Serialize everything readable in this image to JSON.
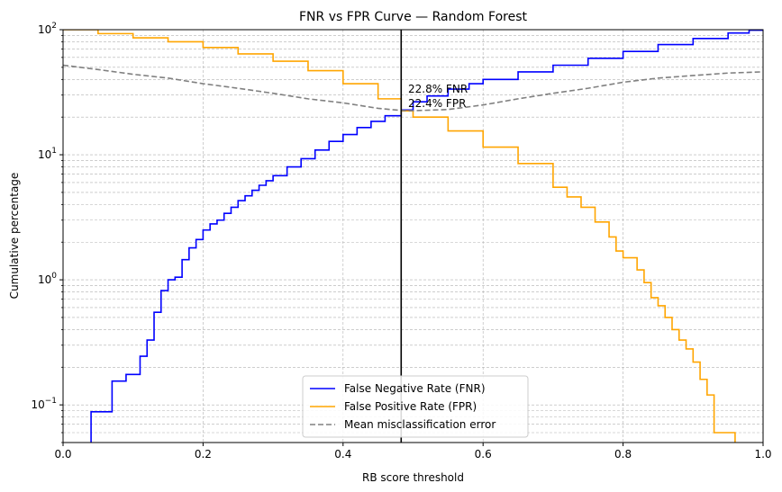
{
  "chart_data": {
    "type": "line",
    "title": "FNR vs FPR Curve — Random Forest",
    "xlabel": "RB score threshold",
    "ylabel": "Cumulative percentage",
    "xlim": [
      0.0,
      1.0
    ],
    "ylim": [
      0.05,
      100
    ],
    "yscale": "log",
    "grid": "both (major and minor, dashed)",
    "legend_position": "lower center",
    "x_ticks": [
      {
        "value": 0.0,
        "label": "0.0"
      },
      {
        "value": 0.2,
        "label": "0.2"
      },
      {
        "value": 0.4,
        "label": "0.4"
      },
      {
        "value": 0.6,
        "label": "0.6"
      },
      {
        "value": 0.8,
        "label": "0.8"
      },
      {
        "value": 1.0,
        "label": "1.0"
      }
    ],
    "y_ticks": [
      {
        "value": 0.1,
        "base": "10",
        "exp": "−1"
      },
      {
        "value": 1,
        "base": "10",
        "exp": "0"
      },
      {
        "value": 10,
        "base": "10",
        "exp": "1"
      },
      {
        "value": 100,
        "base": "10",
        "exp": "2"
      }
    ],
    "series": [
      {
        "name": "False Negative Rate (FNR)",
        "color": "#0000ff",
        "style": "solid-step",
        "points": [
          [
            0.04,
            0.03
          ],
          [
            0.04,
            0.088
          ],
          [
            0.07,
            0.088
          ],
          [
            0.07,
            0.155
          ],
          [
            0.09,
            0.155
          ],
          [
            0.09,
            0.175
          ],
          [
            0.11,
            0.175
          ],
          [
            0.11,
            0.245
          ],
          [
            0.12,
            0.245
          ],
          [
            0.12,
            0.33
          ],
          [
            0.13,
            0.33
          ],
          [
            0.13,
            0.55
          ],
          [
            0.14,
            0.58
          ],
          [
            0.14,
            0.82
          ],
          [
            0.15,
            0.85
          ],
          [
            0.15,
            1.0
          ],
          [
            0.16,
            1.05
          ],
          [
            0.17,
            1.45
          ],
          [
            0.18,
            1.8
          ],
          [
            0.19,
            2.1
          ],
          [
            0.2,
            2.5
          ],
          [
            0.21,
            2.8
          ],
          [
            0.22,
            3.0
          ],
          [
            0.23,
            3.4
          ],
          [
            0.24,
            3.8
          ],
          [
            0.25,
            4.3
          ],
          [
            0.26,
            4.7
          ],
          [
            0.27,
            5.2
          ],
          [
            0.28,
            5.7
          ],
          [
            0.29,
            6.2
          ],
          [
            0.3,
            6.8
          ],
          [
            0.32,
            8.0
          ],
          [
            0.34,
            9.3
          ],
          [
            0.36,
            10.9
          ],
          [
            0.38,
            12.8
          ],
          [
            0.4,
            14.5
          ],
          [
            0.42,
            16.5
          ],
          [
            0.44,
            18.5
          ],
          [
            0.46,
            20.5
          ],
          [
            0.483,
            22.8
          ],
          [
            0.5,
            26.5
          ],
          [
            0.52,
            29.5
          ],
          [
            0.55,
            33.5
          ],
          [
            0.58,
            37.0
          ],
          [
            0.6,
            40.0
          ],
          [
            0.65,
            46.0
          ],
          [
            0.7,
            52.0
          ],
          [
            0.75,
            59.0
          ],
          [
            0.8,
            67.0
          ],
          [
            0.85,
            76.0
          ],
          [
            0.9,
            85.0
          ],
          [
            0.95,
            94.0
          ],
          [
            0.98,
            99.0
          ],
          [
            1.0,
            100.0
          ]
        ]
      },
      {
        "name": "False Positive Rate (FPR)",
        "color": "#ffa500",
        "style": "solid-step",
        "points": [
          [
            0.0,
            100.0
          ],
          [
            0.05,
            93.0
          ],
          [
            0.1,
            86.0
          ],
          [
            0.15,
            80.0
          ],
          [
            0.2,
            72.0
          ],
          [
            0.25,
            64.0
          ],
          [
            0.3,
            56.0
          ],
          [
            0.35,
            47.0
          ],
          [
            0.4,
            37.0
          ],
          [
            0.45,
            28.0
          ],
          [
            0.483,
            22.4
          ],
          [
            0.5,
            20.0
          ],
          [
            0.55,
            15.5
          ],
          [
            0.6,
            11.5
          ],
          [
            0.65,
            8.5
          ],
          [
            0.7,
            5.5
          ],
          [
            0.72,
            4.6
          ],
          [
            0.74,
            3.8
          ],
          [
            0.76,
            2.9
          ],
          [
            0.78,
            2.2
          ],
          [
            0.79,
            1.7
          ],
          [
            0.8,
            1.5
          ],
          [
            0.82,
            1.2
          ],
          [
            0.83,
            0.95
          ],
          [
            0.84,
            0.72
          ],
          [
            0.85,
            0.62
          ],
          [
            0.86,
            0.5
          ],
          [
            0.87,
            0.4
          ],
          [
            0.88,
            0.33
          ],
          [
            0.89,
            0.28
          ],
          [
            0.9,
            0.22
          ],
          [
            0.91,
            0.16
          ],
          [
            0.92,
            0.12
          ],
          [
            0.93,
            0.088
          ],
          [
            0.93,
            0.06
          ],
          [
            0.96,
            0.06
          ],
          [
            0.96,
            0.04
          ]
        ]
      },
      {
        "name": "Mean misclassification error",
        "color": "#808080",
        "style": "dashed",
        "points": [
          [
            0.0,
            52.0
          ],
          [
            0.05,
            48.0
          ],
          [
            0.1,
            44.0
          ],
          [
            0.15,
            41.0
          ],
          [
            0.2,
            37.0
          ],
          [
            0.25,
            34.0
          ],
          [
            0.3,
            31.0
          ],
          [
            0.35,
            28.0
          ],
          [
            0.4,
            26.0
          ],
          [
            0.45,
            23.5
          ],
          [
            0.483,
            22.6
          ],
          [
            0.5,
            22.5
          ],
          [
            0.55,
            23.0
          ],
          [
            0.6,
            25.0
          ],
          [
            0.65,
            28.0
          ],
          [
            0.7,
            31.0
          ],
          [
            0.75,
            34.0
          ],
          [
            0.8,
            38.0
          ],
          [
            0.85,
            41.0
          ],
          [
            0.9,
            43.0
          ],
          [
            0.95,
            45.0
          ],
          [
            1.0,
            46.0
          ]
        ]
      }
    ],
    "threshold_line": {
      "x": 0.483,
      "color": "#000000"
    },
    "annotations": [
      "22.8% FNR",
      "22.4% FPR"
    ]
  }
}
